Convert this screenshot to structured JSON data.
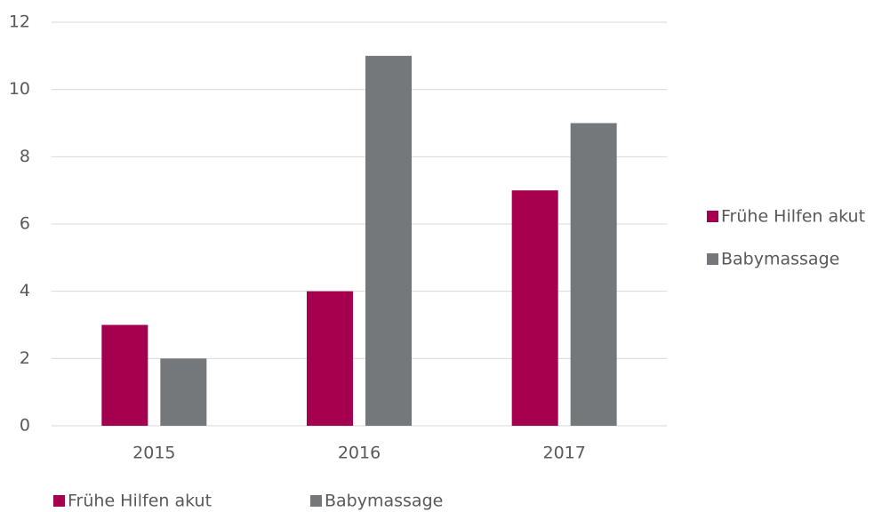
{
  "chart_data": {
    "type": "bar",
    "categories": [
      "2015",
      "2016",
      "2017"
    ],
    "series": [
      {
        "name": "Frühe Hilfen akut",
        "color": "#a50050",
        "values": [
          3,
          4,
          7
        ]
      },
      {
        "name": "Babymassage",
        "color": "#75787b",
        "values": [
          2,
          11,
          9
        ]
      }
    ],
    "ylim": [
      0,
      12
    ],
    "yticks": [
      0,
      2,
      4,
      6,
      8,
      10,
      12
    ],
    "grid": true,
    "legend": [
      "right",
      "bottom"
    ]
  }
}
